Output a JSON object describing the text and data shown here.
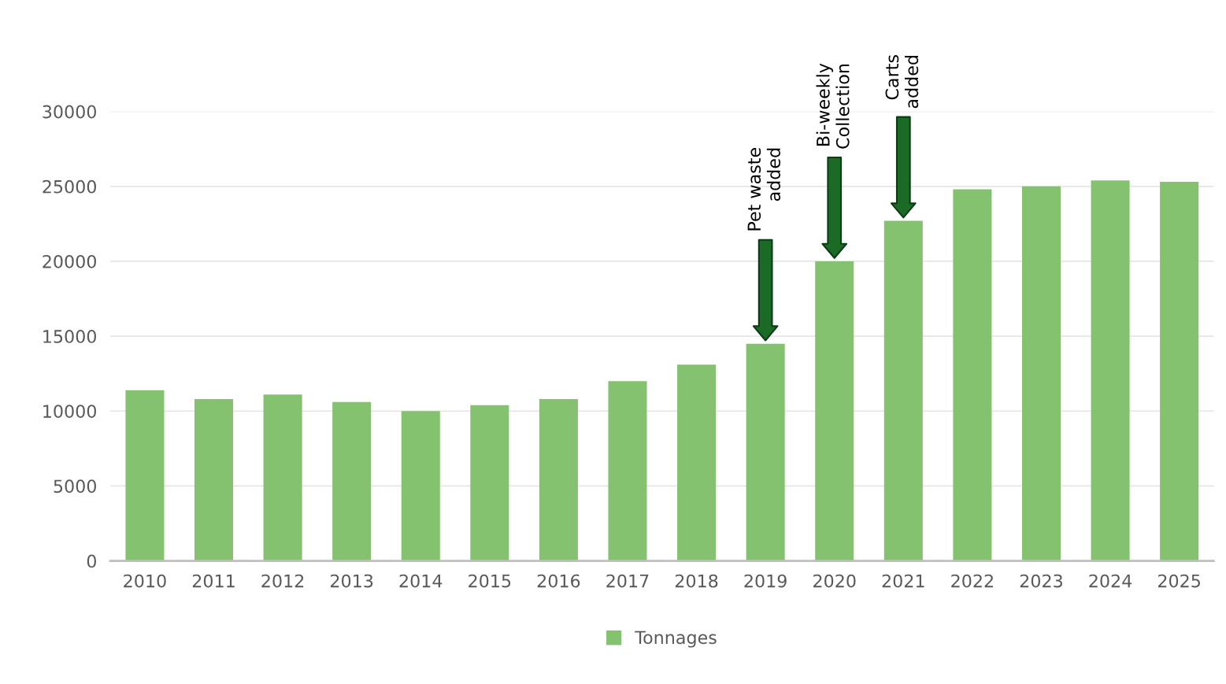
{
  "chart_data": {
    "type": "bar",
    "categories": [
      "2010",
      "2011",
      "2012",
      "2013",
      "2014",
      "2015",
      "2016",
      "2017",
      "2018",
      "2019",
      "2020",
      "2021",
      "2022",
      "2023",
      "2024",
      "2025"
    ],
    "series": [
      {
        "name": "Tonnages",
        "color": "#84c270",
        "values": [
          11400,
          10800,
          11100,
          10600,
          10000,
          10400,
          10800,
          12000,
          13100,
          14500,
          20000,
          22700,
          24800,
          25000,
          25400,
          25300
        ]
      }
    ],
    "ylim": [
      0,
      30000
    ],
    "yticks": [
      0,
      5000,
      10000,
      15000,
      20000,
      25000,
      30000
    ],
    "grid": "y",
    "legend": "bottom",
    "annotations": [
      "Pet waste\nadded",
      "Bi-weekly\nCollection",
      "Carts\nadded"
    ]
  }
}
